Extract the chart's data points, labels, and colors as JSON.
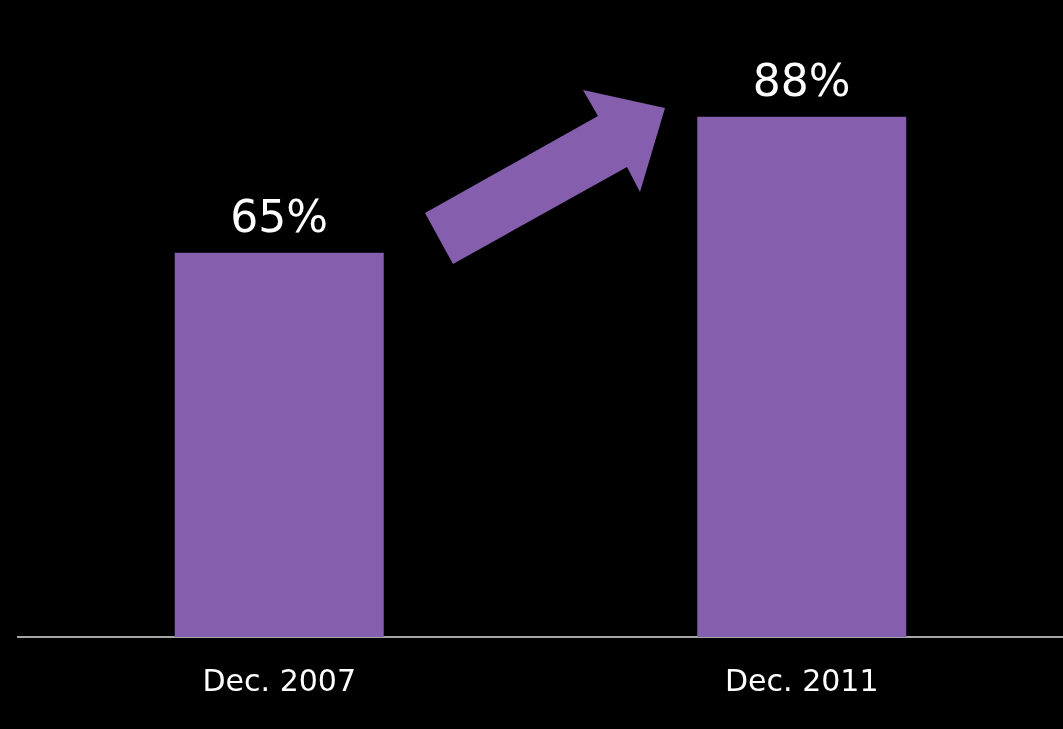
{
  "chart_data": {
    "type": "bar",
    "categories": [
      "Dec. 2007",
      "Dec. 2011"
    ],
    "values": [
      65,
      88
    ],
    "color": "#855ead",
    "value_labels": [
      "65%",
      "88%"
    ],
    "legend": false
  }
}
